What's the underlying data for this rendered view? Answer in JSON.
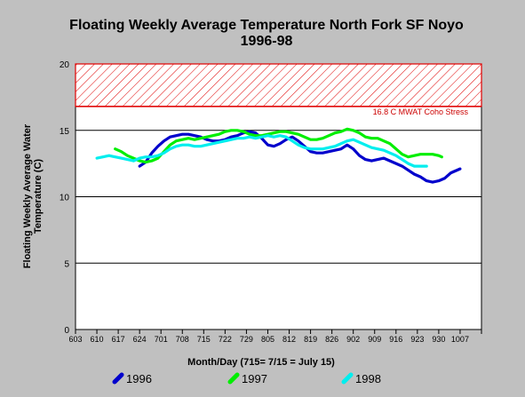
{
  "chart_data": {
    "type": "line",
    "title": "Floating Weekly Average Temperature North Fork SF Noyo",
    "subtitle": "1996-98",
    "xlabel": "Month/Day (715= 7/15 = July 15)",
    "ylabel_line1": "Floating Weekly Average Water",
    "ylabel_line2": "Temperature (C)",
    "x_tick_labels": [
      "603",
      "610",
      "617",
      "624",
      "701",
      "708",
      "715",
      "722",
      "729",
      "805",
      "812",
      "819",
      "826",
      "902",
      "909",
      "916",
      "923",
      "930",
      "1007"
    ],
    "x_dates": [
      "2000-06-03",
      "2000-06-10",
      "2000-06-17",
      "2000-06-24",
      "2000-07-01",
      "2000-07-08",
      "2000-07-15",
      "2000-07-22",
      "2000-07-29",
      "2000-08-05",
      "2000-08-12",
      "2000-08-19",
      "2000-08-26",
      "2000-09-02",
      "2000-09-09",
      "2000-09-16",
      "2000-09-23",
      "2000-09-30",
      "2000-10-07"
    ],
    "xlim": [
      "2000-06-03",
      "2000-10-14"
    ],
    "ylim": [
      0,
      20
    ],
    "y_ticks": [
      0,
      5,
      10,
      15,
      20
    ],
    "grid": true,
    "threshold": {
      "value": 16.8,
      "upper": 20,
      "label": "16.8 C MWAT Coho Stress",
      "color": "#e00000"
    },
    "series": [
      {
        "name": "1996",
        "color": "#0000cc",
        "points": [
          [
            "2000-06-24",
            12.3
          ],
          [
            "2000-06-26",
            12.6
          ],
          [
            "2000-06-28",
            13.3
          ],
          [
            "2000-06-30",
            13.8
          ],
          [
            "2000-07-02",
            14.2
          ],
          [
            "2000-07-04",
            14.5
          ],
          [
            "2000-07-06",
            14.6
          ],
          [
            "2000-07-08",
            14.7
          ],
          [
            "2000-07-10",
            14.7
          ],
          [
            "2000-07-12",
            14.6
          ],
          [
            "2000-07-14",
            14.5
          ],
          [
            "2000-07-16",
            14.3
          ],
          [
            "2000-07-18",
            14.2
          ],
          [
            "2000-07-20",
            14.2
          ],
          [
            "2000-07-22",
            14.3
          ],
          [
            "2000-07-24",
            14.5
          ],
          [
            "2000-07-26",
            14.6
          ],
          [
            "2000-07-28",
            14.8
          ],
          [
            "2000-07-30",
            14.9
          ],
          [
            "2000-08-01",
            14.8
          ],
          [
            "2000-08-03",
            14.4
          ],
          [
            "2000-08-05",
            13.9
          ],
          [
            "2000-08-07",
            13.8
          ],
          [
            "2000-08-09",
            14.0
          ],
          [
            "2000-08-11",
            14.3
          ],
          [
            "2000-08-13",
            14.5
          ],
          [
            "2000-08-15",
            14.2
          ],
          [
            "2000-08-17",
            13.8
          ],
          [
            "2000-08-19",
            13.4
          ],
          [
            "2000-08-21",
            13.3
          ],
          [
            "2000-08-23",
            13.3
          ],
          [
            "2000-08-25",
            13.4
          ],
          [
            "2000-08-27",
            13.5
          ],
          [
            "2000-08-29",
            13.6
          ],
          [
            "2000-08-31",
            13.9
          ],
          [
            "2000-09-02",
            13.6
          ],
          [
            "2000-09-04",
            13.1
          ],
          [
            "2000-09-06",
            12.8
          ],
          [
            "2000-09-08",
            12.7
          ],
          [
            "2000-09-10",
            12.8
          ],
          [
            "2000-09-12",
            12.9
          ],
          [
            "2000-09-14",
            12.7
          ],
          [
            "2000-09-16",
            12.5
          ],
          [
            "2000-09-18",
            12.3
          ],
          [
            "2000-09-20",
            12.0
          ],
          [
            "2000-09-22",
            11.7
          ],
          [
            "2000-09-24",
            11.5
          ],
          [
            "2000-09-26",
            11.2
          ],
          [
            "2000-09-28",
            11.1
          ],
          [
            "2000-09-30",
            11.2
          ],
          [
            "2000-10-02",
            11.4
          ],
          [
            "2000-10-04",
            11.8
          ],
          [
            "2000-10-06",
            12.0
          ],
          [
            "2000-10-07",
            12.1
          ]
        ]
      },
      {
        "name": "1997",
        "color": "#00ee00",
        "points": [
          [
            "2000-06-16",
            13.6
          ],
          [
            "2000-06-18",
            13.4
          ],
          [
            "2000-06-20",
            13.1
          ],
          [
            "2000-06-22",
            12.9
          ],
          [
            "2000-06-24",
            12.7
          ],
          [
            "2000-06-26",
            12.6
          ],
          [
            "2000-06-28",
            12.7
          ],
          [
            "2000-06-30",
            12.9
          ],
          [
            "2000-07-02",
            13.4
          ],
          [
            "2000-07-04",
            13.9
          ],
          [
            "2000-07-06",
            14.2
          ],
          [
            "2000-07-08",
            14.3
          ],
          [
            "2000-07-10",
            14.4
          ],
          [
            "2000-07-12",
            14.3
          ],
          [
            "2000-07-14",
            14.4
          ],
          [
            "2000-07-16",
            14.5
          ],
          [
            "2000-07-18",
            14.6
          ],
          [
            "2000-07-20",
            14.7
          ],
          [
            "2000-07-22",
            14.9
          ],
          [
            "2000-07-24",
            15.0
          ],
          [
            "2000-07-26",
            15.0
          ],
          [
            "2000-07-28",
            14.9
          ],
          [
            "2000-07-30",
            14.7
          ],
          [
            "2000-08-01",
            14.6
          ],
          [
            "2000-08-03",
            14.6
          ],
          [
            "2000-08-05",
            14.7
          ],
          [
            "2000-08-07",
            14.8
          ],
          [
            "2000-08-09",
            14.9
          ],
          [
            "2000-08-11",
            14.9
          ],
          [
            "2000-08-13",
            14.8
          ],
          [
            "2000-08-15",
            14.7
          ],
          [
            "2000-08-17",
            14.5
          ],
          [
            "2000-08-19",
            14.3
          ],
          [
            "2000-08-21",
            14.3
          ],
          [
            "2000-08-23",
            14.4
          ],
          [
            "2000-08-25",
            14.6
          ],
          [
            "2000-08-27",
            14.8
          ],
          [
            "2000-08-29",
            14.9
          ],
          [
            "2000-08-31",
            15.1
          ],
          [
            "2000-09-02",
            15.0
          ],
          [
            "2000-09-04",
            14.8
          ],
          [
            "2000-09-06",
            14.5
          ],
          [
            "2000-09-08",
            14.4
          ],
          [
            "2000-09-10",
            14.4
          ],
          [
            "2000-09-12",
            14.2
          ],
          [
            "2000-09-14",
            14.0
          ],
          [
            "2000-09-16",
            13.6
          ],
          [
            "2000-09-18",
            13.2
          ],
          [
            "2000-09-20",
            13.0
          ],
          [
            "2000-09-22",
            13.1
          ],
          [
            "2000-09-24",
            13.2
          ],
          [
            "2000-09-26",
            13.2
          ],
          [
            "2000-09-28",
            13.2
          ],
          [
            "2000-09-30",
            13.1
          ],
          [
            "2000-10-01",
            13.0
          ]
        ]
      },
      {
        "name": "1998",
        "color": "#00eeee",
        "points": [
          [
            "2000-06-10",
            12.9
          ],
          [
            "2000-06-12",
            13.0
          ],
          [
            "2000-06-14",
            13.1
          ],
          [
            "2000-06-16",
            13.0
          ],
          [
            "2000-06-18",
            12.9
          ],
          [
            "2000-06-20",
            12.8
          ],
          [
            "2000-06-22",
            12.7
          ],
          [
            "2000-06-24",
            12.9
          ],
          [
            "2000-06-26",
            13.0
          ],
          [
            "2000-06-28",
            13.0
          ],
          [
            "2000-06-30",
            13.1
          ],
          [
            "2000-07-02",
            13.3
          ],
          [
            "2000-07-04",
            13.6
          ],
          [
            "2000-07-06",
            13.8
          ],
          [
            "2000-07-08",
            13.9
          ],
          [
            "2000-07-10",
            13.9
          ],
          [
            "2000-07-12",
            13.8
          ],
          [
            "2000-07-14",
            13.8
          ],
          [
            "2000-07-16",
            13.9
          ],
          [
            "2000-07-18",
            14.0
          ],
          [
            "2000-07-20",
            14.1
          ],
          [
            "2000-07-22",
            14.2
          ],
          [
            "2000-07-24",
            14.3
          ],
          [
            "2000-07-26",
            14.4
          ],
          [
            "2000-07-28",
            14.4
          ],
          [
            "2000-07-30",
            14.5
          ],
          [
            "2000-08-01",
            14.4
          ],
          [
            "2000-08-03",
            14.5
          ],
          [
            "2000-08-05",
            14.6
          ],
          [
            "2000-08-07",
            14.5
          ],
          [
            "2000-08-09",
            14.6
          ],
          [
            "2000-08-11",
            14.5
          ],
          [
            "2000-08-13",
            14.2
          ],
          [
            "2000-08-15",
            13.9
          ],
          [
            "2000-08-17",
            13.7
          ],
          [
            "2000-08-19",
            13.6
          ],
          [
            "2000-08-21",
            13.6
          ],
          [
            "2000-08-23",
            13.6
          ],
          [
            "2000-08-25",
            13.7
          ],
          [
            "2000-08-27",
            13.8
          ],
          [
            "2000-08-29",
            14.0
          ],
          [
            "2000-08-31",
            14.2
          ],
          [
            "2000-09-02",
            14.3
          ],
          [
            "2000-09-04",
            14.1
          ],
          [
            "2000-09-06",
            13.9
          ],
          [
            "2000-09-08",
            13.7
          ],
          [
            "2000-09-10",
            13.6
          ],
          [
            "2000-09-12",
            13.5
          ],
          [
            "2000-09-14",
            13.3
          ],
          [
            "2000-09-16",
            13.1
          ],
          [
            "2000-09-18",
            12.8
          ],
          [
            "2000-09-20",
            12.5
          ],
          [
            "2000-09-22",
            12.3
          ],
          [
            "2000-09-24",
            12.3
          ],
          [
            "2000-09-26",
            12.3
          ]
        ]
      }
    ],
    "legend_position": "bottom"
  }
}
